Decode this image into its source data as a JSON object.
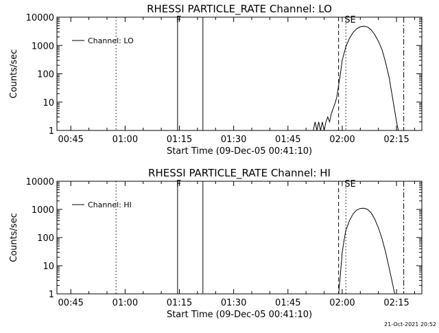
{
  "chart_data": [
    {
      "type": "line",
      "title": "RHESSI PARTICLE_RATE Channel: LO",
      "xlabel": "Start Time (09-Dec-05 00:41:10)",
      "ylabel": "Counts/sec",
      "yscale": "log",
      "xlim": [
        "00:41:10",
        "02:22:00"
      ],
      "ylim": [
        1,
        10000
      ],
      "x_ticks": [
        "00:45",
        "01:00",
        "01:15",
        "01:30",
        "01:45",
        "02:00",
        "02:15"
      ],
      "y_ticks": [
        "1",
        "10",
        "100",
        "1000",
        "10000"
      ],
      "legend": {
        "placement": "top-left",
        "entries": [
          "Channel: LO"
        ]
      },
      "markers": [
        {
          "time": "00:57:30",
          "style": "dotted",
          "label": ""
        },
        {
          "time": "01:14:30",
          "style": "solid",
          "label": "F"
        },
        {
          "time": "01:21:30",
          "style": "solid",
          "label": ""
        },
        {
          "time": "01:59:00",
          "style": "dashed",
          "label": ""
        },
        {
          "time": "02:01:00",
          "style": "dotted",
          "label": "SE"
        },
        {
          "time": "02:17:00",
          "style": "dash-dot",
          "label": ""
        }
      ],
      "series": [
        {
          "name": "Channel: LO",
          "x": [
            "01:52:00",
            "01:52:30",
            "01:53:00",
            "01:53:30",
            "01:54:00",
            "01:54:30",
            "01:55:00",
            "01:55:30",
            "01:56:00",
            "01:56:30",
            "01:57:00",
            "01:57:30",
            "01:58:00",
            "01:58:30",
            "01:59:00",
            "01:59:30",
            "02:00:00",
            "02:01:00",
            "02:02:00",
            "02:03:00",
            "02:04:00",
            "02:05:00",
            "02:06:00",
            "02:07:00",
            "02:08:00",
            "02:09:00",
            "02:10:00",
            "02:11:00",
            "02:12:00",
            "02:13:00",
            "02:14:00",
            "02:15:00",
            "02:15:30"
          ],
          "values": [
            1,
            2,
            1,
            2,
            1,
            2,
            1,
            2,
            3,
            2,
            4,
            6,
            9,
            15,
            40,
            100,
            300,
            900,
            1800,
            2900,
            3900,
            4600,
            4800,
            4500,
            3600,
            2400,
            1400,
            700,
            250,
            70,
            12,
            2,
            1
          ]
        }
      ]
    },
    {
      "type": "line",
      "title": "RHESSI PARTICLE_RATE Channel: HI",
      "xlabel": "Start Time (09-Dec-05 00:41:10)",
      "ylabel": "Counts/sec",
      "yscale": "log",
      "xlim": [
        "00:41:10",
        "02:22:00"
      ],
      "ylim": [
        1,
        10000
      ],
      "x_ticks": [
        "00:45",
        "01:00",
        "01:15",
        "01:30",
        "01:45",
        "02:00",
        "02:15"
      ],
      "y_ticks": [
        "1",
        "10",
        "100",
        "1000",
        "10000"
      ],
      "legend": {
        "placement": "top-left",
        "entries": [
          "Channel: HI"
        ]
      },
      "markers": [
        {
          "time": "00:57:30",
          "style": "dotted",
          "label": ""
        },
        {
          "time": "01:14:30",
          "style": "solid",
          "label": "F"
        },
        {
          "time": "01:21:30",
          "style": "solid",
          "label": ""
        },
        {
          "time": "01:59:00",
          "style": "dashed",
          "label": ""
        },
        {
          "time": "02:01:00",
          "style": "dotted",
          "label": "SE"
        },
        {
          "time": "02:17:00",
          "style": "dash-dot",
          "label": ""
        }
      ],
      "series": [
        {
          "name": "Channel: HI",
          "x": [
            "01:59:00",
            "01:59:30",
            "02:00:00",
            "02:00:30",
            "02:01:00",
            "02:02:00",
            "02:03:00",
            "02:04:00",
            "02:05:00",
            "02:06:00",
            "02:07:00",
            "02:08:00",
            "02:09:00",
            "02:10:00",
            "02:11:00",
            "02:12:00",
            "02:13:00",
            "02:14:00",
            "02:14:30"
          ],
          "values": [
            1,
            5,
            30,
            80,
            180,
            400,
            700,
            950,
            1080,
            1100,
            1000,
            750,
            450,
            220,
            90,
            30,
            8,
            2,
            1
          ]
        }
      ]
    }
  ],
  "footer": {
    "timestamp": "21-Oct-2021 20:52"
  }
}
